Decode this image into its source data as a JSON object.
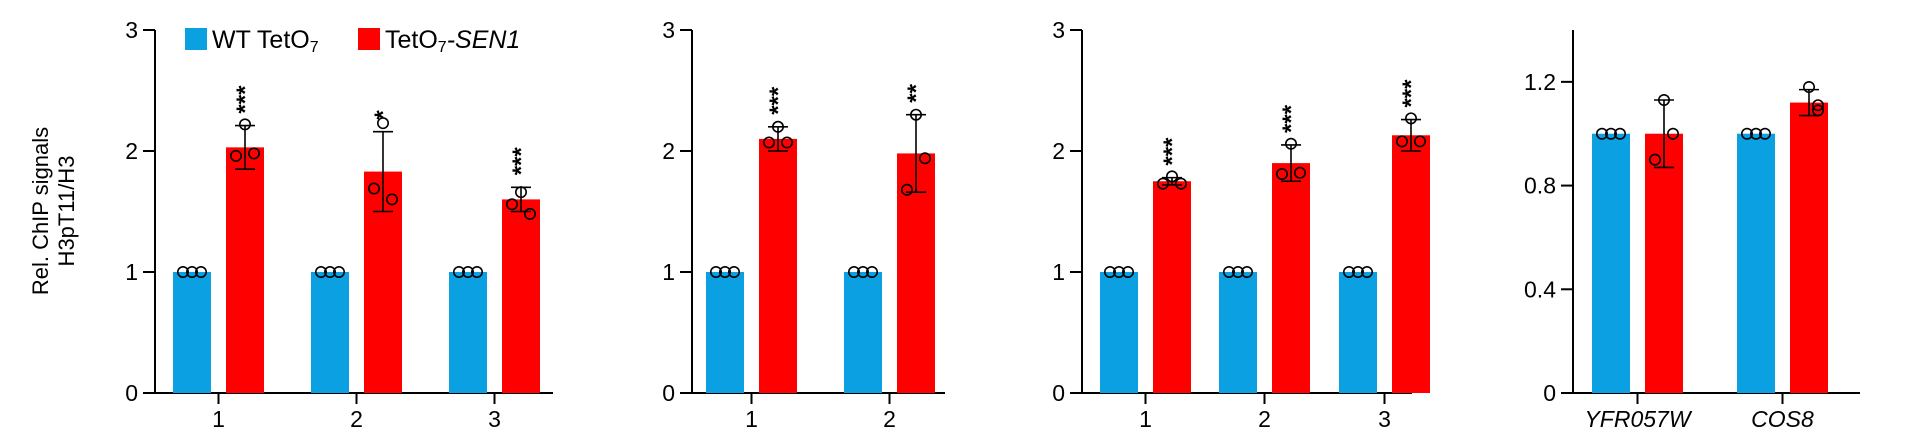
{
  "colors": {
    "wt": "#0aa0e2",
    "sen1": "#ff0000",
    "axis": "#000000"
  },
  "legend": {
    "wt": {
      "prefix": "WT TetO",
      "sub": "7",
      "suffix": ""
    },
    "sen1": {
      "prefix": "TetO",
      "sub": "7",
      "suffix": "-SEN1"
    }
  },
  "ylabel_lines": [
    "Rel. ChIP signals",
    "H3pT11/H3"
  ],
  "chart_data": [
    {
      "type": "bar",
      "ylabel": "Rel. ChIP signals H3pT11/H3",
      "ylim": [
        0,
        3
      ],
      "yticks": [
        "0",
        "1",
        "2",
        "3"
      ],
      "categories": [
        "1",
        "2",
        "3"
      ],
      "series": [
        {
          "name": "WT TetO7",
          "values": [
            1.0,
            1.0,
            1.0
          ],
          "errors": [
            0,
            0,
            0
          ],
          "points": [
            [
              1,
              1,
              1
            ],
            [
              1,
              1,
              1
            ],
            [
              1,
              1,
              1
            ]
          ]
        },
        {
          "name": "TetO7-SEN1",
          "values": [
            2.03,
            1.83,
            1.6
          ],
          "errors": [
            0.18,
            0.33,
            0.1
          ],
          "points": [
            [
              1.96,
              2.22,
              1.98
            ],
            [
              1.69,
              2.23,
              1.6
            ],
            [
              1.56,
              1.66,
              1.48
            ]
          ]
        }
      ],
      "significance": [
        "***",
        "*",
        "***"
      ]
    },
    {
      "type": "bar",
      "ylim": [
        0,
        3
      ],
      "yticks": [
        "0",
        "1",
        "2",
        "3"
      ],
      "categories": [
        "1",
        "2"
      ],
      "series": [
        {
          "name": "WT TetO7",
          "values": [
            1.0,
            1.0
          ],
          "errors": [
            0,
            0
          ],
          "points": [
            [
              1,
              1,
              1
            ],
            [
              1,
              1,
              1
            ]
          ]
        },
        {
          "name": "TetO7-SEN1",
          "values": [
            2.1,
            1.98
          ],
          "errors": [
            0.1,
            0.32
          ],
          "points": [
            [
              2.07,
              2.2,
              2.07
            ],
            [
              1.68,
              2.3,
              1.94
            ]
          ]
        }
      ],
      "significance": [
        "***",
        "**"
      ]
    },
    {
      "type": "bar",
      "ylim": [
        0,
        3
      ],
      "yticks": [
        "0",
        "1",
        "2",
        "3"
      ],
      "categories": [
        "1",
        "2",
        "3"
      ],
      "series": [
        {
          "name": "WT TetO7",
          "values": [
            1.0,
            1.0,
            1.0
          ],
          "errors": [
            0,
            0,
            0
          ],
          "points": [
            [
              1,
              1,
              1
            ],
            [
              1,
              1,
              1
            ],
            [
              1,
              1,
              1
            ]
          ]
        },
        {
          "name": "TetO7-SEN1",
          "values": [
            1.75,
            1.9,
            2.13
          ],
          "errors": [
            0.03,
            0.15,
            0.13
          ],
          "points": [
            [
              1.73,
              1.79,
              1.73
            ],
            [
              1.81,
              2.06,
              1.82
            ],
            [
              2.08,
              2.27,
              2.08
            ]
          ]
        }
      ],
      "significance": [
        "***",
        "***",
        "***"
      ]
    },
    {
      "type": "bar",
      "ylim": [
        0,
        1.4
      ],
      "yticks": [
        "0",
        "0.4",
        "0.8",
        "1.2"
      ],
      "ytick_values": [
        0,
        0.4,
        0.8,
        1.2
      ],
      "categories": [
        "YFR057W",
        "COS8"
      ],
      "series": [
        {
          "name": "WT TetO7",
          "values": [
            1.0,
            1.0
          ],
          "errors": [
            0,
            0
          ],
          "points": [
            [
              1,
              1,
              1
            ],
            [
              1,
              1,
              1
            ]
          ]
        },
        {
          "name": "TetO7-SEN1",
          "values": [
            1.0,
            1.12
          ],
          "errors": [
            0.13,
            0.05
          ],
          "points": [
            [
              0.9,
              1.13,
              1.0
            ],
            [
              1.18,
              1.09,
              1.11
            ]
          ]
        }
      ],
      "significance": [
        "",
        ""
      ]
    }
  ]
}
